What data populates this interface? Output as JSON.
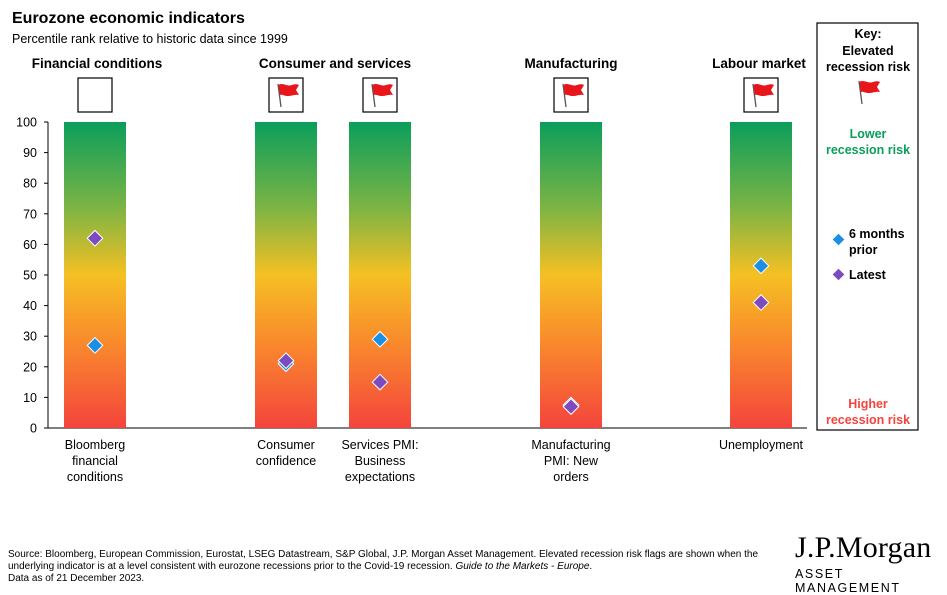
{
  "title": "Eurozone economic indicators",
  "subtitle": "Percentile rank relative to historic data since 1999",
  "chart_data": {
    "type": "scatter",
    "title": "Eurozone economic indicators",
    "subtitle": "Percentile rank relative to historic data since 1999",
    "ylim": [
      0,
      100
    ],
    "yticks": [
      0,
      10,
      20,
      30,
      40,
      50,
      60,
      70,
      80,
      90,
      100
    ],
    "groups": [
      "Financial conditions",
      "Consumer and services",
      "Manufacturing",
      "Labour market"
    ],
    "categories": [
      {
        "label": [
          "Bloomberg",
          "financial",
          "conditions"
        ],
        "group": "Financial conditions",
        "flag": false
      },
      {
        "label": [
          "Consumer",
          "confidence"
        ],
        "group": "Consumer and services",
        "flag": true
      },
      {
        "label": [
          "Services PMI:",
          "Business",
          "expectations"
        ],
        "group": "Consumer and services",
        "flag": true
      },
      {
        "label": [
          "Manufacturing",
          "PMI: New",
          "orders"
        ],
        "group": "Manufacturing",
        "flag": true
      },
      {
        "label": [
          "Unemployment"
        ],
        "group": "Labour market",
        "flag": true
      }
    ],
    "series": [
      {
        "name": "6 months prior",
        "color": "#1a8fe3",
        "values": [
          27,
          21,
          29,
          7.5,
          53
        ]
      },
      {
        "name": "Latest",
        "color": "#7b4bbf",
        "values": [
          62,
          22,
          15,
          7,
          41
        ]
      }
    ]
  },
  "key": {
    "title": "Key:",
    "elevated_line1": "Elevated",
    "elevated_line2": "recession risk",
    "lower_line1": "Lower",
    "lower_line2": "recession risk",
    "six_months_line1": "6 months",
    "six_months_line2": "prior",
    "latest": "Latest",
    "higher_line1": "Higher",
    "higher_line2": "recession risk"
  },
  "colors": {
    "green": "#0a9e5b",
    "red": "#f4443c",
    "flag": "#e8161b",
    "lower_text": "#0a9e5b",
    "higher_text": "#f4443c"
  },
  "footnote": {
    "text": "Source: Bloomberg, European Commission, Eurostat, LSEG Datastream, S&P Global, J.P. Morgan Asset Management. Elevated recession risk flags are shown when the underlying indicator is at a level consistent with eurozone recessions prior to the Covid-19 recession. ",
    "guide": "Guide to the Markets - Europe",
    "guide_end": ".",
    "date": "Data as of 21 December 2023."
  },
  "logo": {
    "main": "J.P.Morgan",
    "sub": "ASSET MANAGEMENT"
  }
}
